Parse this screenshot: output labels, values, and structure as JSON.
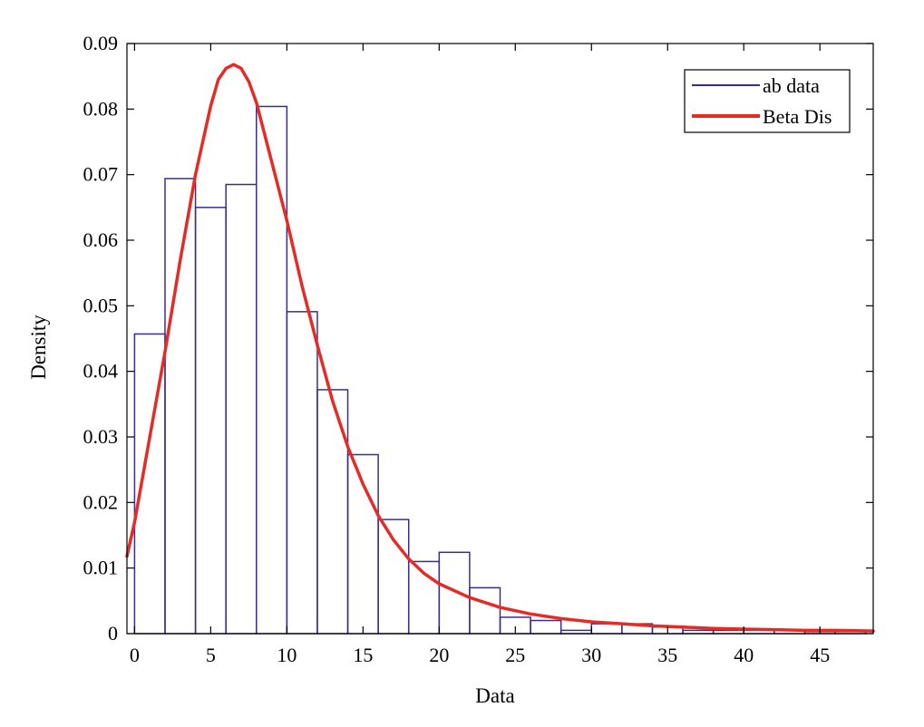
{
  "chart_data": {
    "type": "bar",
    "xlabel": "Data",
    "ylabel": "Density",
    "xlim": [
      -0.5,
      48.5
    ],
    "ylim": [
      0,
      0.09
    ],
    "xticks": [
      0,
      5,
      10,
      15,
      20,
      25,
      30,
      35,
      40,
      45
    ],
    "yticks": [
      0,
      0.01,
      0.02,
      0.03,
      0.04,
      0.05,
      0.06,
      0.07,
      0.08,
      0.09
    ],
    "xtick_labels": [
      "0",
      "5",
      "10",
      "15",
      "20",
      "25",
      "30",
      "35",
      "40",
      "45"
    ],
    "ytick_labels": [
      "0",
      "0.01",
      "0.02",
      "0.03",
      "0.04",
      "0.05",
      "0.06",
      "0.07",
      "0.08",
      "0.09"
    ],
    "grid": false,
    "legend_position": "top-right",
    "colors": {
      "histogram": "#3d2c8d",
      "curve": "#e52b25"
    },
    "series": [
      {
        "name": "ab data",
        "type": "histogram",
        "bin_edges": [
          0,
          2,
          4,
          6,
          8,
          10,
          12,
          14,
          16,
          18,
          20,
          22,
          24,
          26,
          28,
          30,
          32,
          34,
          36,
          38,
          40,
          42,
          44,
          46,
          48
        ],
        "values": [
          0.0457,
          0.0694,
          0.065,
          0.0685,
          0.0804,
          0.0491,
          0.0372,
          0.0273,
          0.0174,
          0.011,
          0.0124,
          0.007,
          0.0025,
          0.002,
          0.0005,
          0.0015,
          0.0015,
          0.001,
          0.0005,
          0.0005,
          0.0005,
          0.0005,
          0.0003,
          0.0003
        ]
      },
      {
        "name": "Beta Dis",
        "type": "line",
        "x": [
          -0.5,
          0,
          1,
          2,
          3,
          4,
          5,
          5.5,
          6,
          6.5,
          7,
          7.5,
          8,
          9,
          10,
          11,
          12,
          13,
          14,
          15,
          16,
          17,
          18,
          19,
          20,
          22,
          24,
          26,
          28,
          30,
          32,
          34,
          36,
          38,
          40,
          42,
          44,
          46,
          48.5
        ],
        "y": [
          0.0118,
          0.017,
          0.03,
          0.043,
          0.057,
          0.07,
          0.0805,
          0.0845,
          0.0862,
          0.0868,
          0.0862,
          0.0842,
          0.081,
          0.072,
          0.063,
          0.053,
          0.044,
          0.0355,
          0.0285,
          0.0228,
          0.018,
          0.0143,
          0.0114,
          0.0092,
          0.0076,
          0.0055,
          0.004,
          0.003,
          0.0023,
          0.0018,
          0.0015,
          0.0012,
          0.001,
          0.0008,
          0.0007,
          0.0006,
          0.0005,
          0.0005,
          0.0004
        ]
      }
    ]
  }
}
